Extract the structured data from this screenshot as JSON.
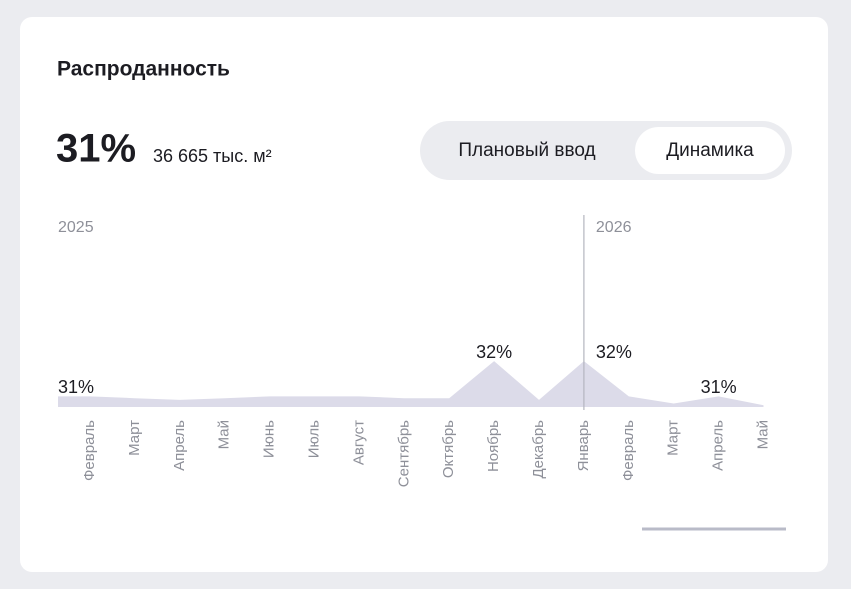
{
  "header": {
    "title": "Распроданность"
  },
  "summary": {
    "value": "31%",
    "detail": "36 665 тыс. м²"
  },
  "toggle": {
    "options": [
      "Плановый ввод",
      "Динамика"
    ],
    "active": 1
  },
  "chart_data": {
    "type": "area",
    "categories": [
      "Февраль",
      "Март",
      "Апрель",
      "Май",
      "Июнь",
      "Июль",
      "Август",
      "Сентябрь",
      "Октябрь",
      "Ноябрь",
      "Декабрь",
      "Январь",
      "Февраль",
      "Март",
      "Апрель",
      "Май"
    ],
    "years": [
      {
        "label": "2025",
        "start": 0
      },
      {
        "label": "2026",
        "start": 11
      }
    ],
    "values": [
      31,
      30.95,
      30.9,
      30.95,
      31,
      31,
      31,
      30.95,
      30.95,
      32,
      30.9,
      32,
      31,
      30.8,
      31,
      30.75
    ],
    "value_labels": [
      "31%",
      null,
      null,
      null,
      null,
      null,
      null,
      null,
      null,
      "32%",
      null,
      "32%",
      null,
      null,
      "31%",
      null
    ],
    "ylim": [
      30.7,
      36
    ],
    "color": "#dcdbe9"
  }
}
